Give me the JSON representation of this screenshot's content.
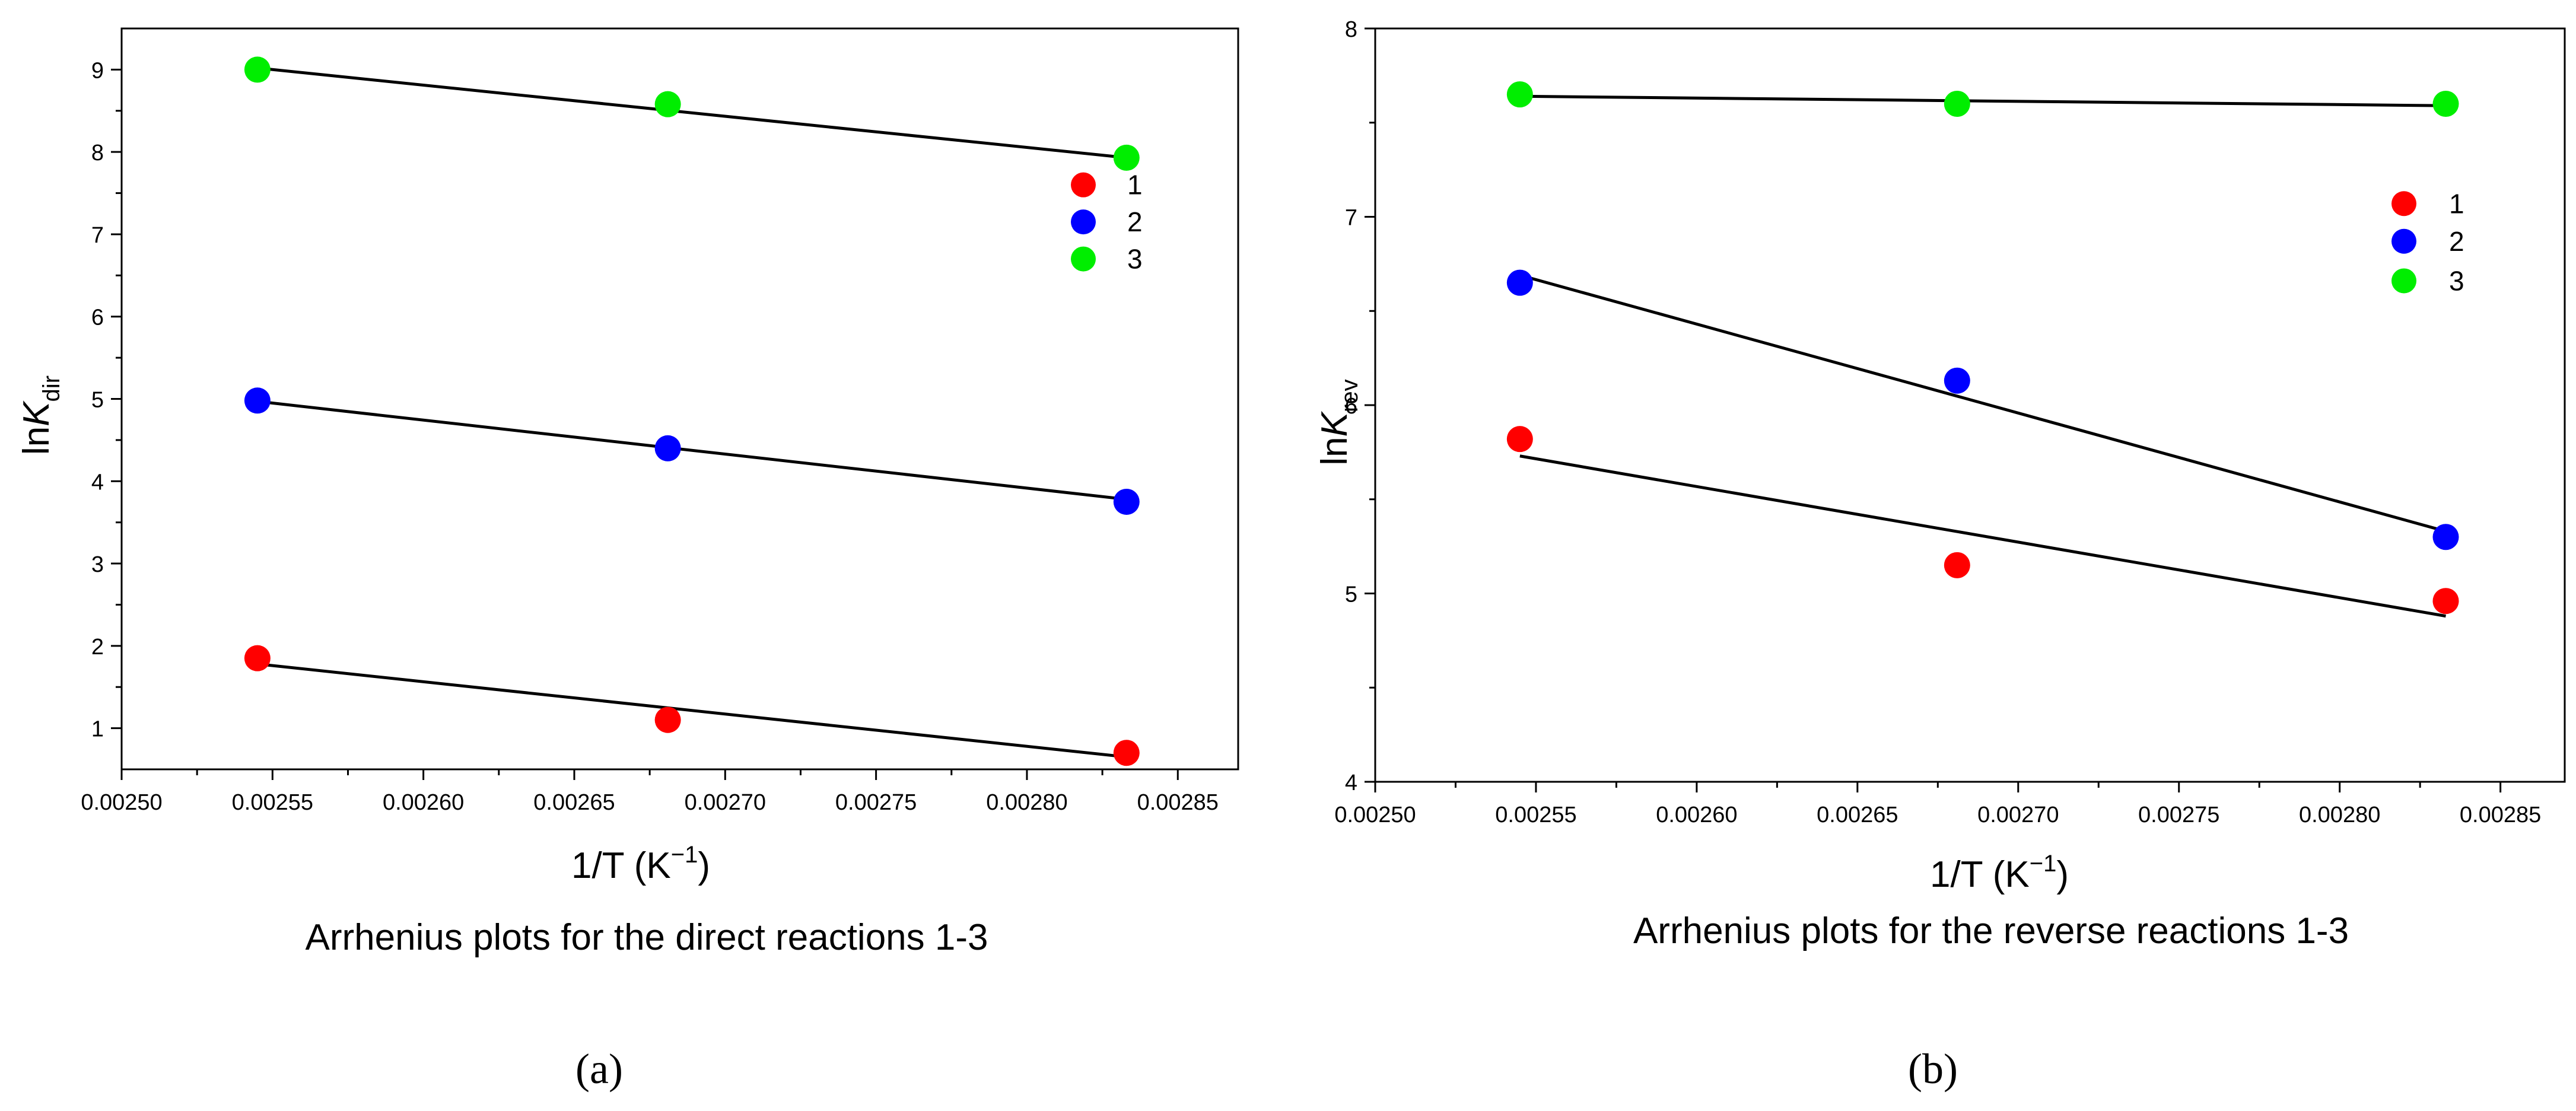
{
  "chart_data": [
    {
      "type": "scatter",
      "panel_label": "(a)",
      "caption": "Arrhenius plots for the direct reactions 1-3",
      "xlabel_text": "1/T (K",
      "xlabel_sup": "−1",
      "xlabel_close": ")",
      "ylabel_prefix": "ln",
      "ylabel_italic": "K",
      "ylabel_sub": "dir",
      "xlim": [
        0.0025,
        0.00287
      ],
      "ylim": [
        0.5,
        9.5
      ],
      "xticks": [
        0.0025,
        0.0026,
        0.0027,
        0.0028
      ],
      "xtick_labels": [
        "0.00250",
        "0.00255",
        "0.00260",
        "0.00265",
        "0.00270",
        "0.00275",
        "0.00280",
        "0.00285"
      ],
      "xtick_values": [
        0.0025,
        0.00255,
        0.0026,
        0.00265,
        0.0027,
        0.00275,
        0.0028,
        0.00285
      ],
      "ytick_values": [
        1,
        2,
        3,
        4,
        5,
        6,
        7,
        8,
        9
      ],
      "ytick_labels": [
        "1",
        "2",
        "3",
        "4",
        "5",
        "6",
        "7",
        "8",
        "9"
      ],
      "legend_position": "right",
      "legend_y": [
        7.6,
        7.15,
        6.7
      ],
      "series": [
        {
          "name": "1",
          "color": "#ff0000",
          "x": [
            0.002545,
            0.002681,
            0.002833
          ],
          "y": [
            1.85,
            1.1,
            0.7
          ],
          "fit": [
            [
              0.002545,
              1.78
            ],
            [
              0.002833,
              0.65
            ]
          ]
        },
        {
          "name": "2",
          "color": "#0000ff",
          "x": [
            0.002545,
            0.002681,
            0.002833
          ],
          "y": [
            4.98,
            4.4,
            3.75
          ],
          "fit": [
            [
              0.002545,
              4.97
            ],
            [
              0.002833,
              3.78
            ]
          ]
        },
        {
          "name": "3",
          "color": "#00ee00",
          "x": [
            0.002545,
            0.002681,
            0.002833
          ],
          "y": [
            9.0,
            8.58,
            7.93
          ],
          "fit": [
            [
              0.002545,
              9.02
            ],
            [
              0.002833,
              7.93
            ]
          ]
        }
      ]
    },
    {
      "type": "scatter",
      "panel_label": "(b)",
      "caption": "Arrhenius plots for the reverse reactions 1-3",
      "xlabel_text": "1/T (K",
      "xlabel_sup": "−1",
      "xlabel_close": ")",
      "ylabel_prefix": "ln",
      "ylabel_italic": "K",
      "ylabel_sub": "rev",
      "xlim": [
        0.0025,
        0.00287
      ],
      "ylim": [
        4,
        8
      ],
      "xtick_labels": [
        "0.00250",
        "0.00255",
        "0.00260",
        "0.00265",
        "0.00270",
        "0.00275",
        "0.00280",
        "0.00285"
      ],
      "xtick_values": [
        0.0025,
        0.00255,
        0.0026,
        0.00265,
        0.0027,
        0.00275,
        0.0028,
        0.00285
      ],
      "ytick_values": [
        4,
        5,
        6,
        7,
        8
      ],
      "ytick_labels": [
        "4",
        "5",
        "6",
        "7",
        "8"
      ],
      "legend_position": "right",
      "legend_y": [
        7.07,
        6.87,
        6.66
      ],
      "series": [
        {
          "name": "1",
          "color": "#ff0000",
          "x": [
            0.002545,
            0.002681,
            0.002833
          ],
          "y": [
            5.82,
            5.15,
            4.96
          ],
          "fit": [
            [
              0.002545,
              5.73
            ],
            [
              0.002833,
              4.88
            ]
          ]
        },
        {
          "name": "2",
          "color": "#0000ff",
          "x": [
            0.002545,
            0.002681,
            0.002833
          ],
          "y": [
            6.65,
            6.13,
            5.3
          ],
          "fit": [
            [
              0.002545,
              6.69
            ],
            [
              0.002833,
              5.33
            ]
          ]
        },
        {
          "name": "3",
          "color": "#00ee00",
          "x": [
            0.002545,
            0.002681,
            0.002833
          ],
          "y": [
            7.65,
            7.6,
            7.6
          ],
          "fit": [
            [
              0.002545,
              7.64
            ],
            [
              0.002833,
              7.59
            ]
          ]
        }
      ]
    }
  ]
}
